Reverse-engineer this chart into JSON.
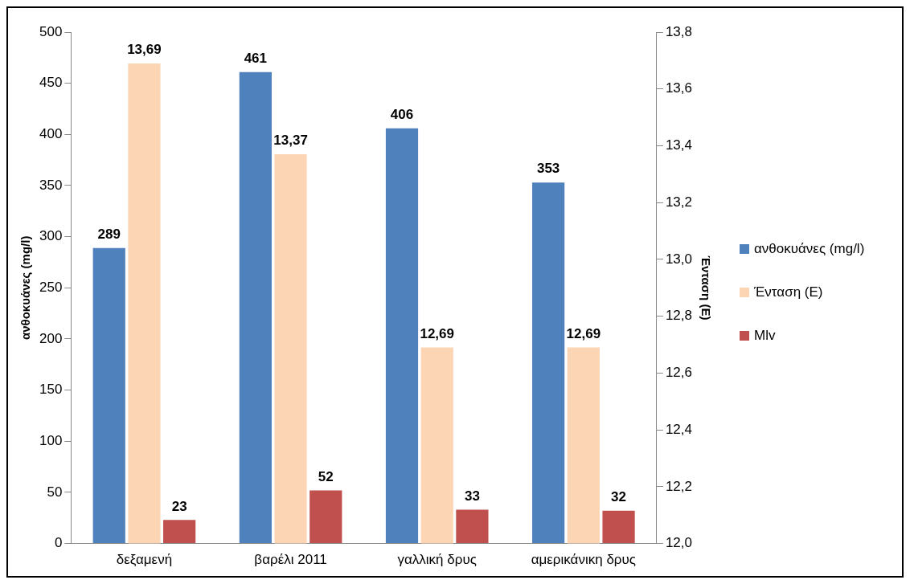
{
  "chart_data": {
    "type": "bar",
    "ylabel": "ανθοκυάνες (mg/l)",
    "y2label": "Ένταση (E)",
    "categories": [
      "δεξαμενή",
      "βαρέλι 2011",
      "γαλλική δρυς",
      "αμερικάνικη δρυς"
    ],
    "series": [
      {
        "name": "ανθοκυάνες (mg/l)",
        "color": "#4f81bd",
        "values": [
          289,
          461,
          406,
          353
        ],
        "value_labels": [
          "289",
          "461",
          "406",
          "353"
        ]
      },
      {
        "name": "Ένταση (E)",
        "color": "#fcd5b5",
        "axis": "y2",
        "values": [
          13.69,
          13.37,
          12.69,
          12.69
        ],
        "value_labels": [
          "13,69",
          "13,37",
          "12,69",
          "12,69"
        ]
      },
      {
        "name": "Mlv",
        "color": "#c0504d",
        "values": [
          23,
          52,
          33,
          32
        ],
        "value_labels": [
          "23",
          "52",
          "33",
          "32"
        ]
      }
    ],
    "ylim": [
      0,
      500
    ],
    "yticks": [
      0,
      50,
      100,
      150,
      200,
      250,
      300,
      350,
      400,
      450,
      500
    ],
    "y2lim": [
      12,
      13.8
    ],
    "y2ticks": [
      {
        "value": 12,
        "label": "12,0"
      },
      {
        "value": 12.2,
        "label": "12,2"
      },
      {
        "value": 12.4,
        "label": "12,4"
      },
      {
        "value": 12.6,
        "label": "12,6"
      },
      {
        "value": 12.8,
        "label": "12,8"
      },
      {
        "value": 13,
        "label": "13,0"
      },
      {
        "value": 13.2,
        "label": "13,2"
      },
      {
        "value": 13.4,
        "label": "13,4"
      },
      {
        "value": 13.6,
        "label": "13,6"
      },
      {
        "value": 13.8,
        "label": "13,8"
      }
    ],
    "grid": false,
    "legend": "right"
  }
}
